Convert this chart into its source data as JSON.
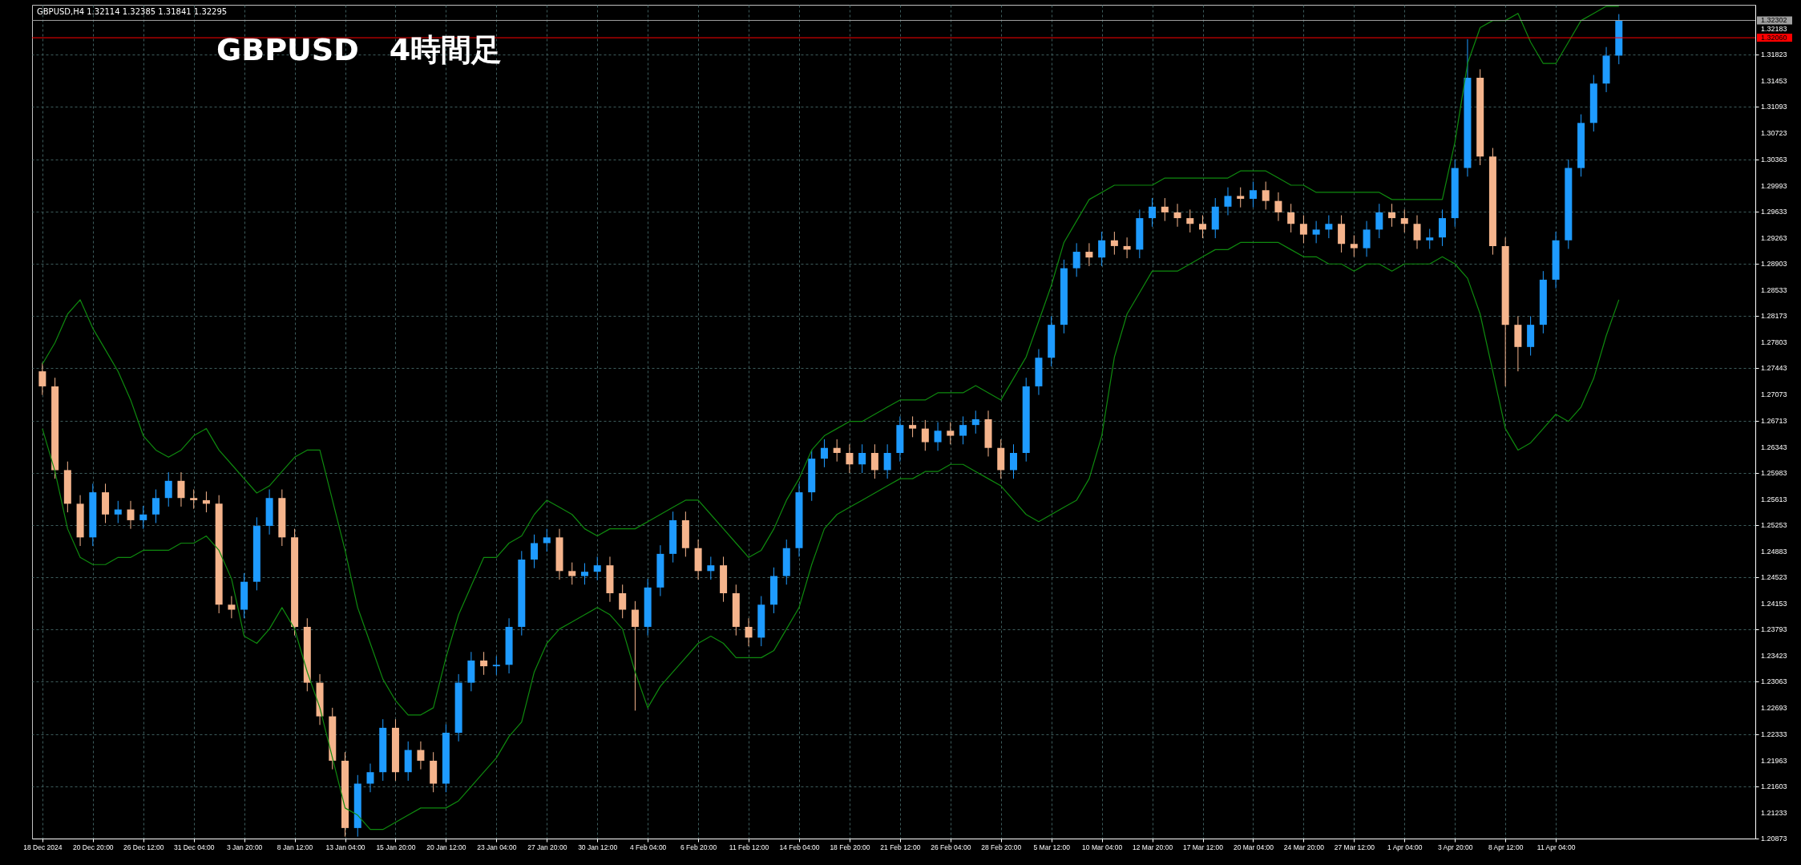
{
  "chart_data": {
    "type": "candlestick",
    "title": "GBPUSD　4時間足",
    "annotations": [
      "GBPUSD,H4  1.32114 1.32385 1.31841 1.32295"
    ],
    "categories": [
      "18 Dec 2024",
      null,
      null,
      null,
      "20 Dec 20:00",
      null,
      null,
      null,
      "26 Dec 12:00",
      null,
      null,
      null,
      "31 Dec 04:00",
      null,
      null,
      null,
      "3 Jan 20:00",
      null,
      null,
      null,
      "8 Jan 12:00",
      null,
      null,
      null,
      "13 Jan 04:00",
      null,
      null,
      null,
      "15 Jan 20:00",
      null,
      null,
      null,
      "20 Jan 12:00",
      null,
      null,
      null,
      "23 Jan 04:00",
      null,
      null,
      null,
      "27 Jan 20:00",
      null,
      null,
      null,
      "30 Jan 12:00",
      null,
      null,
      null,
      "4 Feb 04:00",
      null,
      null,
      null,
      "6 Feb 20:00",
      null,
      null,
      null,
      "11 Feb 12:00",
      null,
      null,
      null,
      "14 Feb 04:00",
      null,
      null,
      null,
      "18 Feb 20:00",
      null,
      null,
      null,
      "21 Feb 12:00",
      null,
      null,
      null,
      "26 Feb 04:00",
      null,
      null,
      null,
      "28 Feb 20:00",
      null,
      null,
      null,
      "5 Mar 12:00",
      null,
      null,
      null,
      "10 Mar 04:00",
      null,
      null,
      null,
      "12 Mar 20:00",
      null,
      null,
      null,
      "17 Mar 12:00",
      null,
      null,
      null,
      "20 Mar 04:00",
      null,
      null,
      null,
      "24 Mar 20:00",
      null,
      null,
      null,
      "27 Mar 12:00",
      null,
      null,
      null,
      "1 Apr 04:00",
      null,
      null,
      null,
      "3 Apr 20:00",
      null,
      null,
      null,
      "8 Apr 12:00",
      null,
      null,
      null,
      "11 Apr 04:00",
      null,
      null,
      null,
      null,
      null
    ],
    "ohlc": [
      [
        1.274,
        1.2752,
        1.2707,
        1.2719
      ],
      [
        1.2719,
        1.2731,
        1.259,
        1.2602
      ],
      [
        1.2602,
        1.2614,
        1.2543,
        1.2555
      ],
      [
        1.2555,
        1.2567,
        1.2496,
        1.2508
      ],
      [
        1.2508,
        1.2583,
        1.2496,
        1.2571
      ],
      [
        1.2571,
        1.2583,
        1.2528,
        1.254
      ],
      [
        1.254,
        1.2559,
        1.2528,
        1.2547
      ],
      [
        1.2547,
        1.2559,
        1.252,
        1.2532
      ],
      [
        1.2532,
        1.2552,
        1.252,
        1.254
      ],
      [
        1.254,
        1.2575,
        1.2528,
        1.2563
      ],
      [
        1.2563,
        1.2599,
        1.2551,
        1.2587
      ],
      [
        1.2587,
        1.2599,
        1.2551,
        1.2563
      ],
      [
        1.2563,
        1.2575,
        1.2548,
        1.256
      ],
      [
        1.256,
        1.2572,
        1.2543,
        1.2555
      ],
      [
        1.2555,
        1.2567,
        1.2402,
        1.2414
      ],
      [
        1.2414,
        1.2426,
        1.2395,
        1.2407
      ],
      [
        1.2407,
        1.2458,
        1.2395,
        1.2446
      ],
      [
        1.2446,
        1.2536,
        1.2434,
        1.2524
      ],
      [
        1.2524,
        1.2575,
        1.2512,
        1.2563
      ],
      [
        1.2563,
        1.2575,
        1.2496,
        1.2508
      ],
      [
        1.2508,
        1.252,
        1.2371,
        1.2383
      ],
      [
        1.2383,
        1.2395,
        1.2293,
        1.2305
      ],
      [
        1.2305,
        1.2317,
        1.2246,
        1.2258
      ],
      [
        1.2258,
        1.227,
        1.2184,
        1.2196
      ],
      [
        1.2196,
        1.2208,
        1.209,
        1.2102
      ],
      [
        1.2102,
        1.2176,
        1.209,
        1.2164
      ],
      [
        1.2164,
        1.2192,
        1.2152,
        1.218
      ],
      [
        1.218,
        1.2254,
        1.2168,
        1.2242
      ],
      [
        1.2242,
        1.2254,
        1.2168,
        1.218
      ],
      [
        1.218,
        1.2223,
        1.2168,
        1.2211
      ],
      [
        1.2211,
        1.2223,
        1.2184,
        1.2196
      ],
      [
        1.2196,
        1.2208,
        1.2152,
        1.2164
      ],
      [
        1.2164,
        1.2247,
        1.2152,
        1.2235
      ],
      [
        1.2235,
        1.2317,
        1.2223,
        1.2305
      ],
      [
        1.2305,
        1.2348,
        1.2293,
        1.2336
      ],
      [
        1.2336,
        1.2348,
        1.2316,
        1.2328
      ],
      [
        1.2328,
        1.2342,
        1.2316,
        1.233
      ],
      [
        1.233,
        1.2395,
        1.2318,
        1.2383
      ],
      [
        1.2383,
        1.2489,
        1.2371,
        1.2477
      ],
      [
        1.2477,
        1.2512,
        1.2465,
        1.25
      ],
      [
        1.25,
        1.252,
        1.2488,
        1.2508
      ],
      [
        1.2508,
        1.252,
        1.2449,
        1.2461
      ],
      [
        1.2461,
        1.2473,
        1.2442,
        1.2454
      ],
      [
        1.2454,
        1.2472,
        1.2442,
        1.246
      ],
      [
        1.246,
        1.2481,
        1.2448,
        1.2469
      ],
      [
        1.2469,
        1.2481,
        1.2418,
        1.243
      ],
      [
        1.243,
        1.2442,
        1.2395,
        1.2407
      ],
      [
        1.2407,
        1.2419,
        1.2266,
        1.2383
      ],
      [
        1.2383,
        1.245,
        1.2371,
        1.2438
      ],
      [
        1.2438,
        1.2497,
        1.2426,
        1.2485
      ],
      [
        1.2485,
        1.2544,
        1.2473,
        1.2532
      ],
      [
        1.2532,
        1.2544,
        1.2481,
        1.2493
      ],
      [
        1.2493,
        1.2505,
        1.2449,
        1.2461
      ],
      [
        1.2461,
        1.2481,
        1.2449,
        1.2469
      ],
      [
        1.2469,
        1.2481,
        1.2418,
        1.243
      ],
      [
        1.243,
        1.2442,
        1.2371,
        1.2383
      ],
      [
        1.2383,
        1.2395,
        1.2356,
        1.2368
      ],
      [
        1.2368,
        1.2426,
        1.2356,
        1.2414
      ],
      [
        1.2414,
        1.2466,
        1.2402,
        1.2454
      ],
      [
        1.2454,
        1.2505,
        1.2442,
        1.2493
      ],
      [
        1.2493,
        1.2583,
        1.2481,
        1.2571
      ],
      [
        1.2571,
        1.263,
        1.2559,
        1.2618
      ],
      [
        1.2618,
        1.2645,
        1.2606,
        1.2633
      ],
      [
        1.2633,
        1.2645,
        1.2614,
        1.2626
      ],
      [
        1.2626,
        1.2638,
        1.2598,
        1.261
      ],
      [
        1.261,
        1.2638,
        1.2598,
        1.2626
      ],
      [
        1.2626,
        1.2638,
        1.259,
        1.2602
      ],
      [
        1.2602,
        1.2638,
        1.259,
        1.2626
      ],
      [
        1.2626,
        1.2677,
        1.2614,
        1.2665
      ],
      [
        1.2665,
        1.2677,
        1.2648,
        1.266
      ],
      [
        1.266,
        1.2672,
        1.2629,
        1.2641
      ],
      [
        1.2641,
        1.2669,
        1.2629,
        1.2657
      ],
      [
        1.2657,
        1.2669,
        1.2638,
        1.265
      ],
      [
        1.265,
        1.2677,
        1.2638,
        1.2665
      ],
      [
        1.2665,
        1.2685,
        1.2653,
        1.2673
      ],
      [
        1.2673,
        1.2685,
        1.2621,
        1.2633
      ],
      [
        1.2633,
        1.2645,
        1.259,
        1.2602
      ],
      [
        1.2602,
        1.2638,
        1.259,
        1.2626
      ],
      [
        1.2626,
        1.2731,
        1.2614,
        1.2719
      ],
      [
        1.2719,
        1.2771,
        1.2707,
        1.2759
      ],
      [
        1.2759,
        1.2817,
        1.2747,
        1.2805
      ],
      [
        1.2805,
        1.2896,
        1.2793,
        1.2884
      ],
      [
        1.2884,
        1.2919,
        1.2872,
        1.2907
      ],
      [
        1.2907,
        1.2919,
        1.2887,
        1.2899
      ],
      [
        1.2899,
        1.2935,
        1.2887,
        1.2923
      ],
      [
        1.2923,
        1.2935,
        1.2903,
        1.2915
      ],
      [
        1.2915,
        1.2927,
        1.2898,
        1.291
      ],
      [
        1.291,
        1.2966,
        1.2898,
        1.2954
      ],
      [
        1.2954,
        1.2982,
        1.2942,
        1.297
      ],
      [
        1.297,
        1.2982,
        1.295,
        1.2962
      ],
      [
        1.2962,
        1.2974,
        1.2942,
        1.2954
      ],
      [
        1.2954,
        1.2966,
        1.2934,
        1.2946
      ],
      [
        1.2946,
        1.2958,
        1.2926,
        1.2938
      ],
      [
        1.2938,
        1.2982,
        1.2926,
        1.297
      ],
      [
        1.297,
        1.2997,
        1.2958,
        1.2985
      ],
      [
        1.2985,
        1.2997,
        1.2969,
        1.2981
      ],
      [
        1.2981,
        1.3005,
        1.2969,
        1.2993
      ],
      [
        1.2993,
        1.3005,
        1.2966,
        1.2978
      ],
      [
        1.2978,
        1.299,
        1.295,
        1.2962
      ],
      [
        1.2962,
        1.2974,
        1.2934,
        1.2946
      ],
      [
        1.2946,
        1.2958,
        1.2919,
        1.2931
      ],
      [
        1.2931,
        1.295,
        1.2919,
        1.2938
      ],
      [
        1.2938,
        1.2958,
        1.2926,
        1.2946
      ],
      [
        1.2946,
        1.2958,
        1.2906,
        1.2918
      ],
      [
        1.2918,
        1.293,
        1.29,
        1.2912
      ],
      [
        1.2912,
        1.295,
        1.29,
        1.2938
      ],
      [
        1.2938,
        1.2974,
        1.2926,
        1.2962
      ],
      [
        1.2962,
        1.2974,
        1.2942,
        1.2954
      ],
      [
        1.2954,
        1.2966,
        1.2934,
        1.2946
      ],
      [
        1.2946,
        1.2958,
        1.2911,
        1.2923
      ],
      [
        1.2923,
        1.2939,
        1.2911,
        1.2927
      ],
      [
        1.2927,
        1.2966,
        1.2915,
        1.2954
      ],
      [
        1.2954,
        1.3036,
        1.2942,
        1.3024
      ],
      [
        1.3024,
        1.3204,
        1.3012,
        1.315
      ],
      [
        1.315,
        1.3162,
        1.3028,
        1.304
      ],
      [
        1.304,
        1.3052,
        1.2903,
        1.2915
      ],
      [
        1.2915,
        1.2927,
        1.2719,
        1.2805
      ],
      [
        1.2805,
        1.2817,
        1.274,
        1.2774
      ],
      [
        1.2774,
        1.2817,
        1.2762,
        1.2805
      ],
      [
        1.2805,
        1.288,
        1.2793,
        1.2868
      ],
      [
        1.2868,
        1.2935,
        1.2856,
        1.2923
      ],
      [
        1.2923,
        1.3036,
        1.2911,
        1.3024
      ],
      [
        1.3024,
        1.3099,
        1.3012,
        1.3087
      ],
      [
        1.3087,
        1.3154,
        1.3075,
        1.3142
      ],
      [
        1.3142,
        1.3193,
        1.313,
        1.3181
      ],
      [
        1.3181,
        1.3239,
        1.3169,
        1.323
      ]
    ],
    "colors": [
      "#f5b48c",
      "#f5b48c",
      "#f5b48c",
      "#f5b48c",
      "#1e9bff",
      "#f5b48c",
      "#1e9bff",
      "#f5b48c",
      "#1e9bff",
      "#1e9bff",
      "#1e9bff",
      "#f5b48c",
      "#f5b48c",
      "#f5b48c",
      "#f5b48c",
      "#f5b48c",
      "#1e9bff",
      "#1e9bff",
      "#1e9bff",
      "#f5b48c",
      "#f5b48c",
      "#f5b48c",
      "#f5b48c",
      "#f5b48c",
      "#f5b48c",
      "#1e9bff",
      "#1e9bff",
      "#1e9bff",
      "#f5b48c",
      "#1e9bff",
      "#f5b48c",
      "#f5b48c",
      "#1e9bff",
      "#1e9bff",
      "#1e9bff",
      "#f5b48c",
      "#1e9bff",
      "#1e9bff",
      "#1e9bff",
      "#1e9bff",
      "#1e9bff",
      "#f5b48c",
      "#f5b48c",
      "#1e9bff",
      "#1e9bff",
      "#f5b48c",
      "#f5b48c",
      "#f5b48c",
      "#1e9bff",
      "#1e9bff",
      "#1e9bff",
      "#f5b48c",
      "#f5b48c",
      "#1e9bff",
      "#f5b48c",
      "#f5b48c",
      "#f5b48c",
      "#1e9bff",
      "#1e9bff",
      "#1e9bff",
      "#1e9bff",
      "#1e9bff",
      "#1e9bff",
      "#f5b48c",
      "#f5b48c",
      "#1e9bff",
      "#f5b48c",
      "#1e9bff",
      "#1e9bff",
      "#f5b48c",
      "#f5b48c",
      "#1e9bff",
      "#f5b48c",
      "#1e9bff",
      "#1e9bff",
      "#f5b48c",
      "#f5b48c",
      "#1e9bff",
      "#1e9bff",
      "#1e9bff",
      "#1e9bff",
      "#1e9bff",
      "#1e9bff",
      "#f5b48c",
      "#1e9bff",
      "#f5b48c",
      "#f5b48c",
      "#1e9bff",
      "#1e9bff",
      "#f5b48c",
      "#f5b48c",
      "#f5b48c",
      "#f5b48c",
      "#1e9bff",
      "#1e9bff",
      "#f5b48c",
      "#1e9bff",
      "#f5b48c",
      "#f5b48c",
      "#f5b48c",
      "#f5b48c",
      "#1e9bff",
      "#1e9bff",
      "#f5b48c",
      "#f5b48c",
      "#1e9bff",
      "#1e9bff",
      "#f5b48c",
      "#f5b48c",
      "#f5b48c",
      "#1e9bff",
      "#1e9bff",
      "#1e9bff",
      "#1e9bff",
      "#f5b48c",
      "#f5b48c",
      "#f5b48c",
      "#f5b48c",
      "#1e9bff",
      "#1e9bff",
      "#1e9bff",
      "#1e9bff",
      "#1e9bff",
      "#1e9bff",
      "#1e9bff",
      "#1e9bff"
    ],
    "series": [
      {
        "type": "line",
        "color": "#0f8a0f",
        "values": [
          1.275,
          1.278,
          1.282,
          1.284,
          1.28,
          1.277,
          1.274,
          1.27,
          1.265,
          1.263,
          1.262,
          1.263,
          1.265,
          1.266,
          1.263,
          1.261,
          1.259,
          1.257,
          1.258,
          1.26,
          1.262,
          1.263,
          1.263,
          1.256,
          1.249,
          1.241,
          1.236,
          1.231,
          1.228,
          1.226,
          1.226,
          1.227,
          1.234,
          1.24,
          1.244,
          1.248,
          1.248,
          1.25,
          1.251,
          1.254,
          1.256,
          1.255,
          1.254,
          1.252,
          1.251,
          1.252,
          1.252,
          1.252,
          1.253,
          1.254,
          1.255,
          1.256,
          1.256,
          1.254,
          1.252,
          1.25,
          1.248,
          1.249,
          1.252,
          1.256,
          1.259,
          1.263,
          1.265,
          1.266,
          1.267,
          1.267,
          1.268,
          1.269,
          1.27,
          1.27,
          1.27,
          1.271,
          1.271,
          1.271,
          1.272,
          1.271,
          1.27,
          1.273,
          1.276,
          1.281,
          1.286,
          1.292,
          1.295,
          1.298,
          1.299,
          1.3,
          1.3,
          1.3,
          1.3,
          1.301,
          1.301,
          1.301,
          1.301,
          1.301,
          1.301,
          1.302,
          1.302,
          1.302,
          1.301,
          1.3,
          1.3,
          1.299,
          1.299,
          1.299,
          1.299,
          1.299,
          1.299,
          1.298,
          1.298,
          1.298,
          1.298,
          1.298,
          1.306,
          1.317,
          1.322,
          1.323,
          1.323,
          1.324,
          1.32,
          1.317,
          1.317,
          1.32,
          1.323,
          1.324,
          1.325,
          1.325
        ]
      },
      {
        "type": "line",
        "color": "#0f8a0f",
        "values": [
          1.266,
          1.26,
          1.252,
          1.248,
          1.247,
          1.247,
          1.248,
          1.248,
          1.249,
          1.249,
          1.249,
          1.25,
          1.25,
          1.251,
          1.249,
          1.245,
          1.237,
          1.236,
          1.238,
          1.241,
          1.238,
          1.232,
          1.227,
          1.22,
          1.213,
          1.212,
          1.21,
          1.21,
          1.211,
          1.212,
          1.213,
          1.213,
          1.213,
          1.214,
          1.216,
          1.218,
          1.22,
          1.223,
          1.225,
          1.232,
          1.236,
          1.238,
          1.239,
          1.24,
          1.241,
          1.24,
          1.238,
          1.232,
          1.227,
          1.23,
          1.232,
          1.234,
          1.236,
          1.237,
          1.236,
          1.234,
          1.234,
          1.234,
          1.235,
          1.238,
          1.241,
          1.247,
          1.252,
          1.254,
          1.255,
          1.256,
          1.257,
          1.258,
          1.259,
          1.259,
          1.26,
          1.26,
          1.261,
          1.261,
          1.26,
          1.259,
          1.258,
          1.256,
          1.254,
          1.253,
          1.254,
          1.255,
          1.256,
          1.259,
          1.265,
          1.276,
          1.282,
          1.285,
          1.288,
          1.288,
          1.288,
          1.289,
          1.29,
          1.291,
          1.291,
          1.292,
          1.292,
          1.292,
          1.292,
          1.291,
          1.29,
          1.29,
          1.289,
          1.289,
          1.288,
          1.289,
          1.289,
          1.288,
          1.289,
          1.289,
          1.289,
          1.29,
          1.289,
          1.287,
          1.282,
          1.274,
          1.266,
          1.263,
          1.264,
          1.266,
          1.268,
          1.267,
          1.269,
          1.273,
          1.279,
          1.284
        ]
      }
    ],
    "ylim": [
      1.20873,
      1.3252
    ],
    "yticks": [
      1.20873,
      1.21233,
      1.21603,
      1.21963,
      1.22333,
      1.22693,
      1.23063,
      1.23423,
      1.23793,
      1.24153,
      1.24523,
      1.24883,
      1.25253,
      1.25613,
      1.25983,
      1.26343,
      1.26713,
      1.27073,
      1.27443,
      1.27803,
      1.28173,
      1.28533,
      1.28903,
      1.29263,
      1.29633,
      1.29993,
      1.30363,
      1.30723,
      1.31093,
      1.31453,
      1.31823,
      1.32183
    ],
    "grid": true,
    "ref_lines": [
      {
        "axis": "y",
        "value": 1.3206,
        "label": "1.32060",
        "color": "#ff0000"
      },
      {
        "axis": "y",
        "value": 1.32302,
        "label": "1.32302",
        "color": "#a0a0a0"
      }
    ]
  }
}
